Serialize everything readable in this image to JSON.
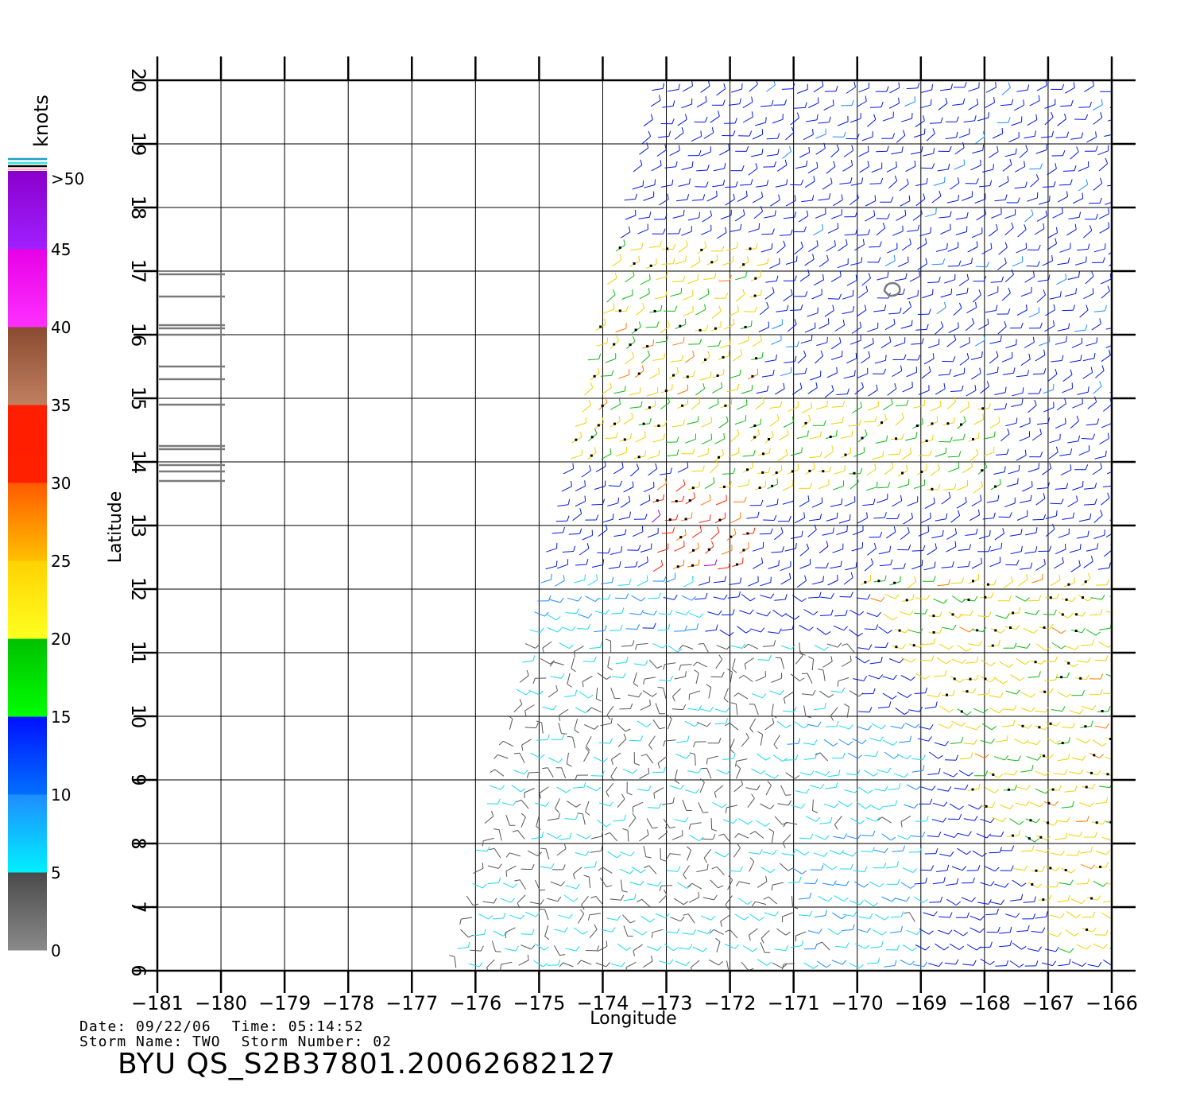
{
  "map": {
    "lon_range": [
      -181,
      -166
    ],
    "lat_range": [
      6,
      20
    ],
    "lon_ticks": [
      -181,
      -180,
      -179,
      -178,
      -177,
      -176,
      -175,
      -174,
      -173,
      -172,
      -171,
      -170,
      -169,
      -168,
      -167,
      -166
    ],
    "lat_ticks": [
      6,
      7,
      8,
      9,
      10,
      11,
      12,
      13,
      14,
      15,
      16,
      17,
      18,
      19,
      20
    ],
    "xlabel": "Longitude",
    "ylabel": "Latitude",
    "grid": true
  },
  "legend": {
    "unit": "knots",
    "top_label": ">50",
    "bins": [
      {
        "min": 0,
        "max": 5,
        "color": "#4a4a4a"
      },
      {
        "min": 5,
        "max": 10,
        "color": "#1e8cff"
      },
      {
        "min": 10,
        "max": 15,
        "color": "#0010ff"
      },
      {
        "min": 15,
        "max": 20,
        "color": "#00c000"
      },
      {
        "min": 20,
        "max": 25,
        "color": "#ffd200"
      },
      {
        "min": 25,
        "max": 30,
        "color": "#ff5a00"
      },
      {
        "min": 30,
        "max": 35,
        "color": "#ff1e00"
      },
      {
        "min": 35,
        "max": 40,
        "color": "#8a4a30"
      },
      {
        "min": 40,
        "max": 45,
        "color": "#e600e6"
      },
      {
        "min": 45,
        "max": 50,
        "color": "#8a00cc"
      }
    ],
    "tick_labels": [
      "0",
      "5",
      "10",
      "15",
      "20",
      "25",
      "30",
      "35",
      "40",
      "45"
    ]
  },
  "info": {
    "date": "Date: 09/22/06",
    "time": "Time: 05:14:52",
    "storm_name": "Storm Name: TWO",
    "storm_number": "Storm Number: 02"
  },
  "file_id": "BYU QS_S2B37801.20062682127"
}
